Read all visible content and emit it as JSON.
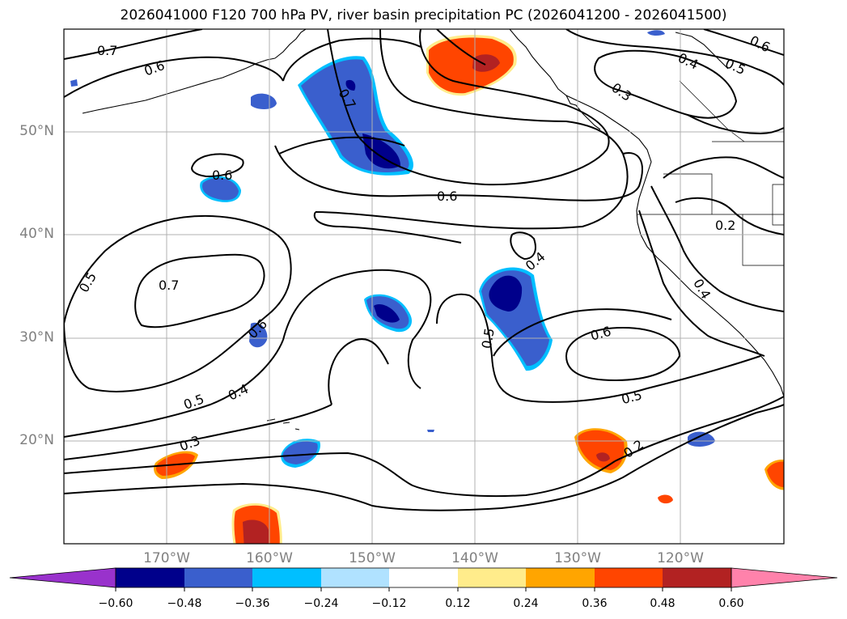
{
  "title": "2026041000 F120 700 hPa PV, river basin precipitation PC (2026041200 - 2026041500)",
  "map": {
    "lat_ticks": [
      "50°N",
      "40°N",
      "30°N",
      "20°N"
    ],
    "lon_ticks": [
      "170°W",
      "160°W",
      "150°W",
      "140°W",
      "130°W",
      "120°W"
    ],
    "contour_labels": [
      "0.7",
      "0.6",
      "0.4",
      "0.5",
      "0.6",
      "0.3",
      "0.7",
      "0.6",
      "0.6",
      "0.2",
      "0.5",
      "0.7",
      "0.6",
      "0.4",
      "0.5",
      "0.6",
      "0.5",
      "0.4",
      "0.3",
      "0.2",
      "0.4",
      "0.5"
    ],
    "gridlines": true
  },
  "colorbar": {
    "ticks": [
      "−0.60",
      "−0.48",
      "−0.36",
      "−0.24",
      "−0.12",
      "0.12",
      "0.24",
      "0.36",
      "0.48",
      "0.60"
    ],
    "colors": {
      "under": "#9932cc",
      "bins": [
        "#00008b",
        "#3a5fcd",
        "#00bfff",
        "#b0e2ff",
        "#ffffff",
        "#ffec8b",
        "#ffa500",
        "#ff4500",
        "#b22222",
        "#ff82ab"
      ]
    },
    "extend": "both"
  }
}
